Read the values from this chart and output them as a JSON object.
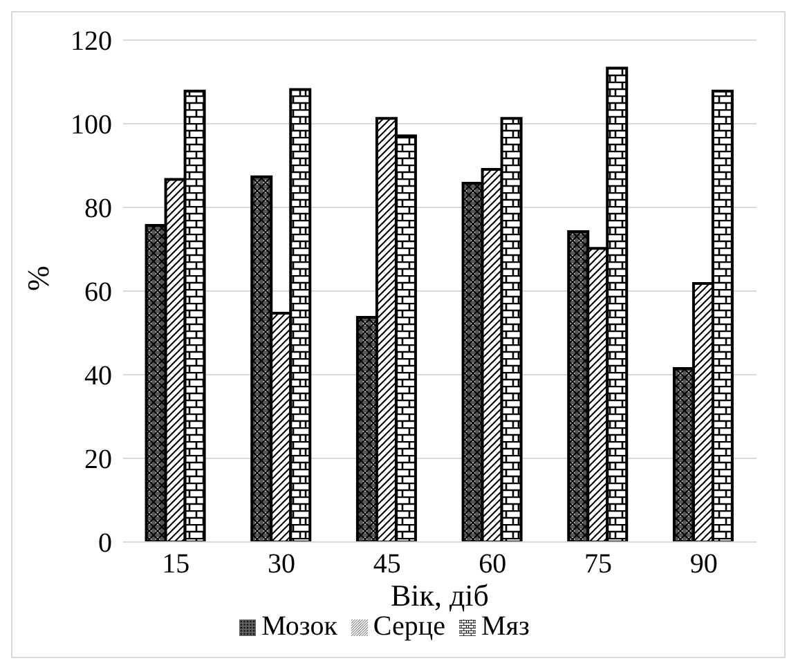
{
  "chart_data": {
    "type": "bar",
    "xlabel": "Вік, діб",
    "ylabel": "%",
    "categories": [
      "15",
      "30",
      "45",
      "60",
      "75",
      "90"
    ],
    "series": [
      {
        "name": "Мозок",
        "color": "#000000",
        "values": [
          75.7,
          87.3,
          53.7,
          85.8,
          74.2,
          41.5
        ]
      },
      {
        "name": "Серце",
        "color": "#000000",
        "values": [
          86.7,
          54.7,
          101.3,
          89.1,
          70.2,
          61.8
        ]
      },
      {
        "name": "Мяз",
        "color": "#000000",
        "values": [
          107.8,
          108.2,
          97.1,
          101.3,
          113.3,
          107.8
        ]
      }
    ],
    "ylim": [
      0,
      120
    ],
    "yticks": [
      0,
      20,
      40,
      60,
      80,
      100,
      120
    ],
    "grid": "y",
    "legend": "bottom"
  }
}
